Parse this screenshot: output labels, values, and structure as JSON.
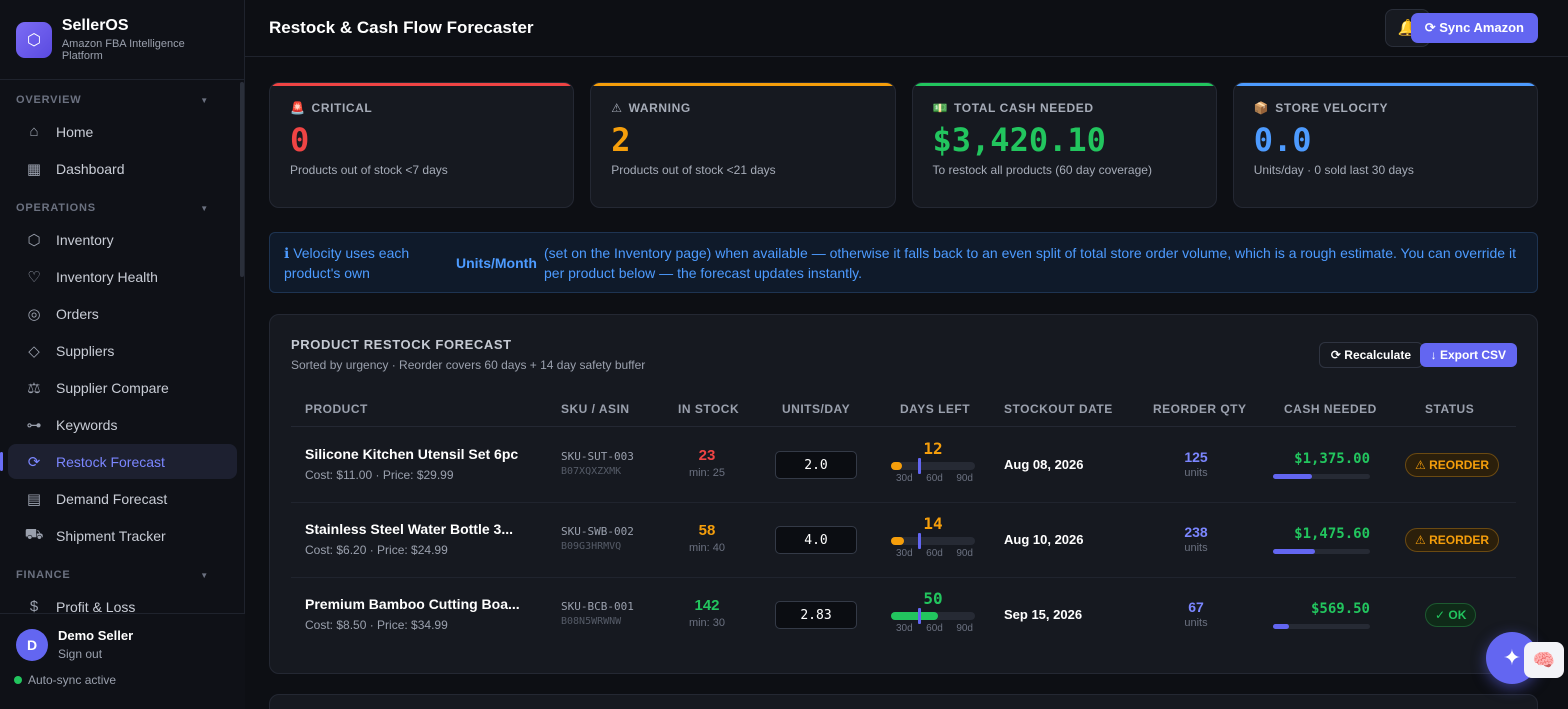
{
  "brand": {
    "logo_glyph": "⬡",
    "title": "SellerOS",
    "subtitle": "Amazon FBA Intelligence Platform"
  },
  "sidebar": {
    "sections": [
      {
        "label": "OVERVIEW",
        "items": [
          {
            "label": "Home",
            "icon": "home-icon"
          },
          {
            "label": "Dashboard",
            "icon": "grid-icon"
          }
        ]
      },
      {
        "label": "OPERATIONS",
        "items": [
          {
            "label": "Inventory",
            "icon": "box-icon"
          },
          {
            "label": "Inventory Health",
            "icon": "heart-icon"
          },
          {
            "label": "Orders",
            "icon": "check-circle-icon"
          },
          {
            "label": "Suppliers",
            "icon": "diamond-icon"
          },
          {
            "label": "Supplier Compare",
            "icon": "scale-icon"
          },
          {
            "label": "Keywords",
            "icon": "key-icon"
          },
          {
            "label": "Restock Forecast",
            "icon": "refresh-icon",
            "active": true
          },
          {
            "label": "Demand Forecast",
            "icon": "calendar-icon"
          },
          {
            "label": "Shipment Tracker",
            "icon": "truck-icon"
          }
        ]
      },
      {
        "label": "FINANCE",
        "items": [
          {
            "label": "Profit & Loss",
            "icon": "dollar-icon"
          }
        ]
      }
    ],
    "user": {
      "initial": "D",
      "name": "Demo Seller",
      "sign_out": "Sign out"
    },
    "sync_status": "Auto-sync active"
  },
  "header": {
    "title": "Restock & Cash Flow Forecaster",
    "bell_icon": "bell-icon",
    "sync_label": "⟳ Sync Amazon"
  },
  "cards": [
    {
      "icon": "🚨",
      "label": "CRITICAL",
      "value": "0",
      "sub": "Products out of stock <7 days",
      "accent": "#ef4444"
    },
    {
      "icon": "⚠",
      "label": "WARNING",
      "value": "2",
      "sub": "Products out of stock <21 days",
      "accent": "#f59e0b"
    },
    {
      "icon": "💵",
      "label": "TOTAL CASH NEEDED",
      "value": "$3,420.10",
      "sub": "To restock all products (60 day coverage)",
      "accent": "#22c55e"
    },
    {
      "icon": "📦",
      "label": "STORE VELOCITY",
      "value": "0.0",
      "sub": "Units/day · 0 sold last 30 days",
      "accent": "#4d9bff"
    }
  ],
  "info": {
    "part1": "ℹ Velocity uses each product's own",
    "part2": "Units/Month",
    "part3": "(set on the Inventory page) when available — otherwise it falls back to an even split of total store order volume, which is a rough estimate. You can override it per product below — the forecast updates instantly."
  },
  "forecast": {
    "title": "PRODUCT RESTOCK FORECAST",
    "subtitle": "Sorted by urgency · Reorder covers 60 days + 14 day safety buffer",
    "recalc_label": "⟳ Recalculate",
    "export_label": "↓ Export CSV",
    "columns": [
      "PRODUCT",
      "SKU / ASIN",
      "IN STOCK",
      "UNITS/DAY",
      "DAYS LEFT",
      "STOCKOUT DATE",
      "REORDER QTY",
      "CASH NEEDED",
      "STATUS"
    ],
    "ticks": [
      "30d",
      "60d",
      "90d"
    ],
    "rows": [
      {
        "name": "Silicone Kitchen Utensil Set 6pc",
        "cost": "Cost: $11.00 · Price: $29.99",
        "sku": "SKU-SUT-003",
        "asin": "B07XQXZXMK",
        "stock": "23",
        "min": "min: 25",
        "stock_color": "#ef4444",
        "units_day": "2.0",
        "days_left": "12",
        "days_color": "#f59e0b",
        "days_fraction": 0.133,
        "stockout": "Aug 08, 2026",
        "reorder": "125",
        "reorder_unit": "units",
        "cash": "$1,375.00",
        "cash_fraction": 0.4,
        "status": "⚠ REORDER",
        "status_kind": "reorder"
      },
      {
        "name": "Stainless Steel Water Bottle 3...",
        "cost": "Cost: $6.20 · Price: $24.99",
        "sku": "SKU-SWB-002",
        "asin": "B09G3HRMVQ",
        "stock": "58",
        "min": "min: 40",
        "stock_color": "#f59e0b",
        "units_day": "4.0",
        "days_left": "14",
        "days_color": "#f59e0b",
        "days_fraction": 0.156,
        "stockout": "Aug 10, 2026",
        "reorder": "238",
        "reorder_unit": "units",
        "cash": "$1,475.60",
        "cash_fraction": 0.43,
        "status": "⚠ REORDER",
        "status_kind": "reorder"
      },
      {
        "name": "Premium Bamboo Cutting Boa...",
        "cost": "Cost: $8.50 · Price: $34.99",
        "sku": "SKU-BCB-001",
        "asin": "B08N5WRWNW",
        "stock": "142",
        "min": "min: 30",
        "stock_color": "#22c55e",
        "units_day": "2.83",
        "days_left": "50",
        "days_color": "#22c55e",
        "days_fraction": 0.556,
        "stockout": "Sep 15, 2026",
        "reorder": "67",
        "reorder_unit": "units",
        "cash": "$569.50",
        "cash_fraction": 0.17,
        "status": "✓ OK",
        "status_kind": "ok"
      }
    ]
  },
  "fab_glyph": "✦",
  "brain_glyph": "🧠"
}
